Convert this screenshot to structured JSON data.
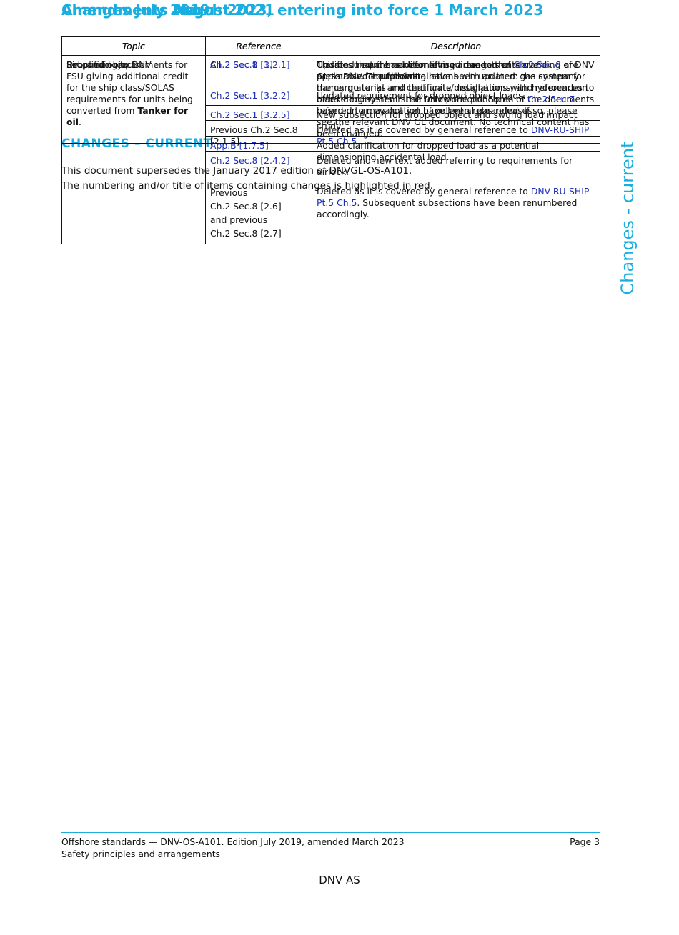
{
  "heading": "CHANGES – CURRENT",
  "intro": [
    "This document supersedes the January 2017 edition of DNVGL-OS-A101.",
    "The numbering and/or title of items containing changes is highlighted in red."
  ],
  "side_label": "Changes - current",
  "sections": [
    {
      "title": "Amendments March 2023, entering into force 1 March 2023",
      "table": {
        "columns": [
          "Topic",
          "Reference",
          "Description"
        ],
        "rows": [
          {
            "topic": [
              [
                {
                  "text": "Dropped objects"
                }
              ]
            ],
            "entries": [
              {
                "reference": [
                  [
                    {
                      "text": "Ch.2 Sec.1 [3.2.1]",
                      "link": true
                    }
                  ]
                ],
                "description": [
                  [
                    {
                      "text": "Updated requirement for lifting arrangements over pressurised equipment."
                    }
                  ]
                ]
              },
              {
                "reference": [
                  [
                    {
                      "text": "Ch.2 Sec.1 [3.2.2]",
                      "link": true
                    }
                  ]
                ],
                "description": [
                  [
                    {
                      "text": "Updated requirement for dropped object loads."
                    }
                  ]
                ]
              },
              {
                "reference": [
                  [
                    {
                      "text": "Ch.2 Sec.1 [3.2.5]",
                      "link": true
                    }
                  ]
                ],
                "description": [
                  [
                    {
                      "text": "New subsection for dropped object and swung load impact study."
                    }
                  ]
                ]
              },
              {
                "reference": [
                  [
                    {
                      "text": "App.B [1.7.5]",
                      "link": true
                    }
                  ]
                ],
                "description": [
                  [
                    {
                      "text": "Added clarification for dropped load as a potential dimensioning accidental load."
                    }
                  ]
                ]
              }
            ]
          }
        ]
      }
    },
    {
      "title": "Amendments August 2021",
      "table": {
        "columns": [
          "Topic",
          "Reference",
          "Description"
        ],
        "rows": [
          {
            "topic": [
              [
                {
                  "text": "Rebranding to DNV"
                }
              ]
            ],
            "entries": [
              {
                "reference": [
                  [
                    {
                      "text": "All"
                    }
                  ]
                ],
                "description": [
                  [
                    {
                      "text": "This document has been revised due to the rebranding of DNV GL to DNV. The following have been updated: the company name, material and certificate designations, and references to other documents in the DNV portfolio. Some of the documents referred to may not yet have been rebranded. If so, please see the relevant DNV GL document. No technical content has been changed."
                    }
                  ]
                ]
              }
            ]
          }
        ]
      }
    },
    {
      "title": "Changes July 2019",
      "table": {
        "columns": [
          "Topic",
          "Reference",
          "Description"
        ],
        "rows": [
          {
            "topic": [
              [
                {
                  "text": "Simplified requirements for FSU giving additional credit for the ship class/SOLAS requirements for units being converted from "
                },
                {
                  "text": "Tanker for oil",
                  "bold": true
                },
                {
                  "text": "."
                }
              ]
            ],
            "entries": [
              {
                "reference": [
                  [
                    {
                      "text": "Ch.2 Sec.8 [1]",
                      "link": true
                    }
                  ]
                ],
                "description": [
                  [
                    {
                      "text": "Clarifies that the additional requirements of "
                    },
                    {
                      "text": "Ch.2 Sec.8",
                      "link": true
                    },
                    {
                      "text": " are applicable for units/installations with an inert gas system for the cargo tanks and that units/installations with hydrocarbon blanketing system shall follow the principles of "
                    },
                    {
                      "text": "Ch.2 Sec.7",
                      "link": true
                    },
                    {
                      "text": " based on an evaluation of potential gas releases."
                    }
                  ]
                ]
              },
              {
                "reference": [
                  [
                    {
                      "text": "Previous Ch.2 Sec.8 [2.1.5]"
                    }
                  ]
                ],
                "description": [
                  [
                    {
                      "text": "Deleted as it is covered by general reference to "
                    },
                    {
                      "text": "DNV-RU-SHIP Pt.5 Ch.5",
                      "link": true
                    },
                    {
                      "text": "."
                    }
                  ]
                ]
              },
              {
                "reference": [
                  [
                    {
                      "text": "Ch.2 Sec.8 [2.4.2]",
                      "link": true
                    }
                  ]
                ],
                "description": [
                  [
                    {
                      "text": "Deleted and new text added referring to requirements for airlock."
                    }
                  ]
                ]
              },
              {
                "reference": [
                  [
                    {
                      "text": "Previous"
                    }
                  ],
                  [
                    {
                      "text": "Ch.2 Sec.8 [2.6]"
                    }
                  ],
                  [
                    {
                      "text": "and previous"
                    }
                  ],
                  [
                    {
                      "text": "Ch.2 Sec.8 [2.7]"
                    }
                  ]
                ],
                "description": [
                  [
                    {
                      "text": "Deleted as it is covered by general reference to "
                    },
                    {
                      "text": "DNV-RU-SHIP Pt.5 Ch.5",
                      "link": true
                    },
                    {
                      "text": ". Subsequent subsections have been renumbered accordingly."
                    }
                  ]
                ]
              }
            ]
          }
        ]
      }
    }
  ],
  "footer": {
    "left": [
      "Offshore standards — DNV-OS-A101. Edition July 2019, amended March 2023",
      "Safety principles and arrangements"
    ],
    "right": "Page 3"
  },
  "publisher": "DNV AS"
}
